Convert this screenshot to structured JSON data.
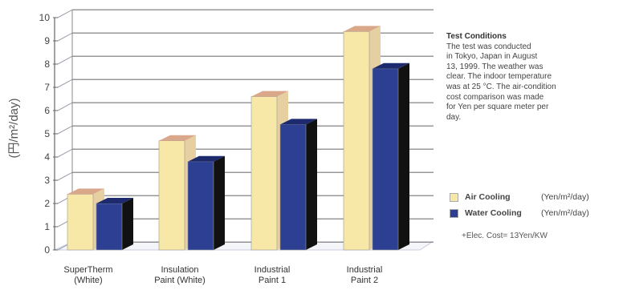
{
  "chart_data": {
    "type": "bar",
    "title": "",
    "xlabel": "",
    "ylabel": "(円/m²/day)",
    "ylim": [
      0,
      10
    ],
    "yticks": [
      0,
      1,
      2,
      3,
      4,
      5,
      6,
      7,
      8,
      9,
      10
    ],
    "grid": true,
    "legend_position": "right",
    "categories": [
      [
        "SuperTherm",
        "(White)"
      ],
      [
        "Insulation",
        "Paint (White)"
      ],
      [
        "Industrial",
        "Paint 1"
      ],
      [
        "Industrial",
        "Paint 2"
      ]
    ],
    "series": [
      {
        "name": "Air Cooling",
        "unit": "(Yen/m²/day)",
        "color": "#f7e8a8",
        "values": [
          2.4,
          4.7,
          6.6,
          9.4
        ]
      },
      {
        "name": "Water Cooling",
        "unit": "(Yen/m²/day)",
        "color": "#2c3f93",
        "values": [
          2.0,
          3.8,
          5.4,
          7.8
        ]
      }
    ]
  },
  "conditions": {
    "title": "Test Conditions",
    "lines": [
      "The test was conducted",
      "in Tokyo, Japan in August",
      "13, 1999. The weather was",
      "clear. The indoor temperature",
      "was at 25 °C. The air-condition",
      "cost comparison was made",
      "for Yen per square meter per",
      "day."
    ]
  },
  "note": "+Elec. Cost= 13Yen/KW",
  "colors": {
    "air_top": "#d9a78a",
    "water_side": "#111111",
    "water_top": "#1e2a6e",
    "air_side": "#e6cfa0"
  }
}
